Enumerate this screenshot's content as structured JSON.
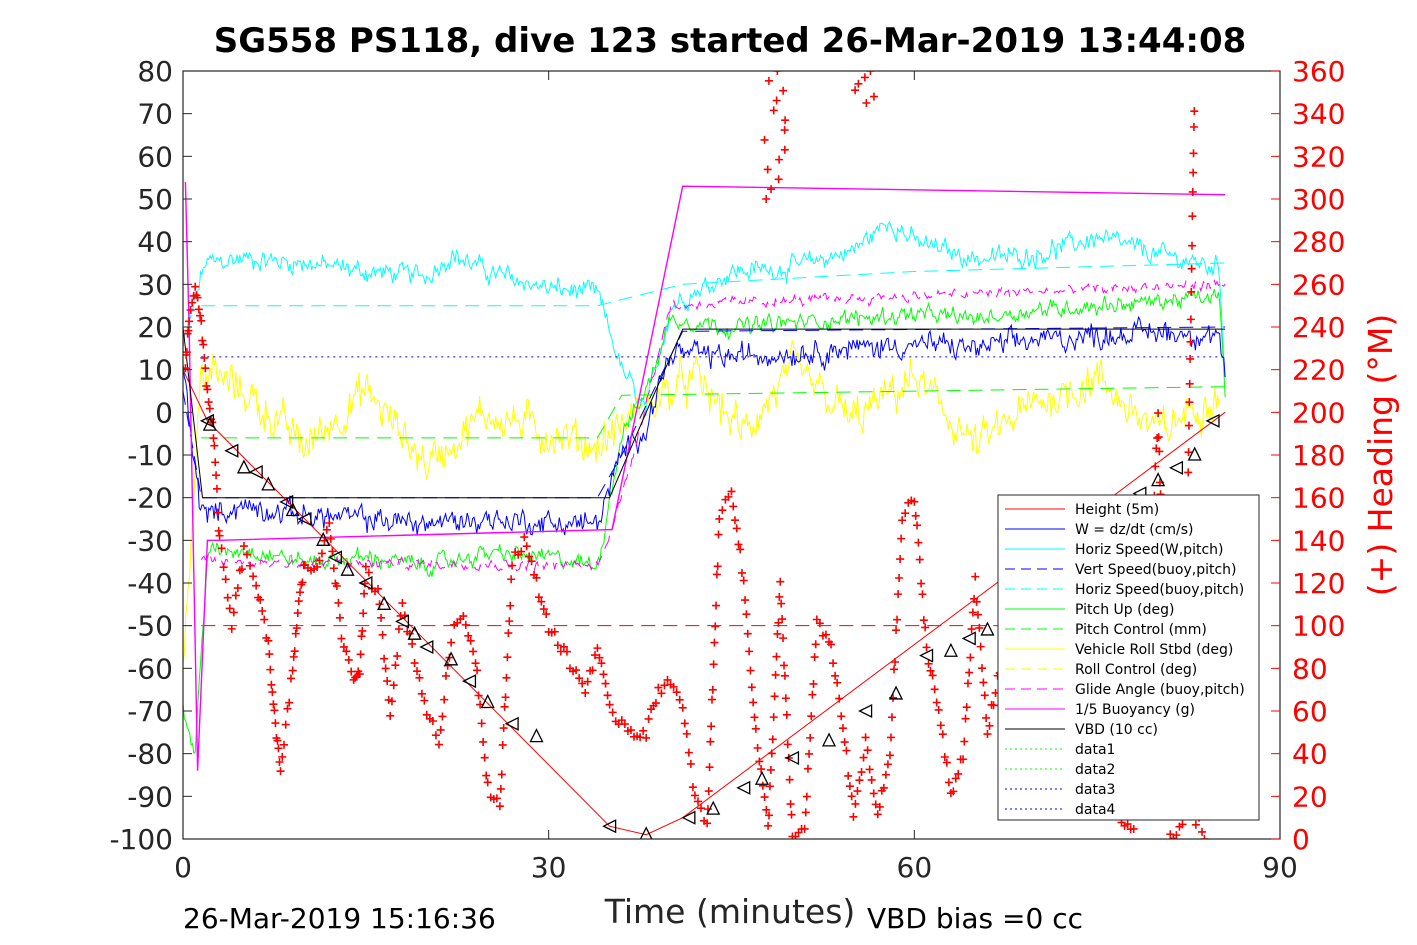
{
  "chart_data": {
    "type": "line",
    "title": "SG558 PS118, dive 123 started 26-Mar-2019 13:44:08",
    "xlabel": "Time (minutes)",
    "ylabel_right": "(+) Heading (°M)",
    "xlim": [
      0,
      90
    ],
    "ylim": [
      -100,
      80
    ],
    "ylim_right": [
      0,
      360
    ],
    "x_ticks": [
      "0",
      "30",
      "60",
      "90"
    ],
    "y_ticks": [
      "80",
      "70",
      "60",
      "50",
      "40",
      "30",
      "20",
      "10",
      "0",
      "-10",
      "-20",
      "-30",
      "-40",
      "-50",
      "-60",
      "-70",
      "-80",
      "-90",
      "-100"
    ],
    "y_ticks_right": [
      "360",
      "340",
      "320",
      "300",
      "280",
      "260",
      "240",
      "220",
      "200",
      "180",
      "160",
      "140",
      "120",
      "100",
      "80",
      "60",
      "40",
      "20",
      "0"
    ],
    "footer_left": "26-Mar-2019 15:16:36",
    "footer_right": "VBD bias =0 cc",
    "legend_position": "bottom-right",
    "colors": {
      "red": "#ff0000",
      "blue": "#0000ff",
      "cyan": "#00ffff",
      "green": "#00ff00",
      "yellow": "#ffff00",
      "magenta": "#ff00ff",
      "black": "#000000"
    },
    "series": [
      {
        "name": "Height (5m)",
        "color": "#ff0000",
        "style": "solid",
        "x": [
          0,
          2,
          35,
          38,
          41,
          85.5
        ],
        "y": [
          10,
          -2,
          -97,
          -99,
          -95,
          0
        ]
      },
      {
        "name": "W = dz/dt (cm/s)",
        "color": "#0000ff",
        "style": "solid",
        "x": [
          0,
          1.5,
          5,
          10,
          15,
          20,
          25,
          30,
          34,
          36,
          38,
          40,
          45,
          50,
          55,
          60,
          65,
          70,
          75,
          80,
          85,
          85.5
        ],
        "y": [
          10,
          -24,
          -22,
          -24,
          -25,
          -26,
          -25,
          -26,
          -26,
          -10,
          -3,
          14,
          13,
          14,
          15,
          16,
          15,
          17,
          18,
          19,
          18,
          8
        ],
        "noise": 3.5
      },
      {
        "name": "Horiz Speed(W,pitch)",
        "color": "#00ffff",
        "style": "solid",
        "x": [
          0,
          1.8,
          5,
          10,
          15,
          20,
          22,
          25,
          30,
          34,
          36,
          38,
          40,
          45,
          50,
          55,
          58,
          60,
          65,
          70,
          75,
          80,
          85,
          85.5
        ],
        "y": [
          15,
          35,
          36,
          35,
          33,
          32,
          37,
          33,
          29,
          28,
          10,
          0,
          25,
          33,
          34,
          38,
          45,
          40,
          36,
          37,
          41,
          37,
          34,
          10
        ],
        "noise": 3
      },
      {
        "name": "Vert Speed(buoy,pitch)",
        "color": "#0000ff",
        "style": "dashed",
        "x": [
          0,
          1.5,
          34,
          36,
          41,
          85.5
        ],
        "y": [
          5,
          -20,
          -20,
          -10,
          19,
          20
        ]
      },
      {
        "name": "Horiz Speed(buoy,pitch)",
        "color": "#00ffff",
        "style": "dashed",
        "x": [
          1.5,
          34,
          41,
          60,
          85.5
        ],
        "y": [
          25,
          25,
          30,
          33,
          35
        ]
      },
      {
        "name": "Pitch Up (deg)",
        "color": "#00ff00",
        "style": "solid",
        "x": [
          0,
          1,
          2,
          5,
          10,
          15,
          20,
          25,
          30,
          34,
          36,
          38,
          40,
          45,
          50,
          55,
          60,
          65,
          70,
          75,
          80,
          85,
          85.5
        ],
        "y": [
          -70,
          -80,
          -33,
          -32,
          -35,
          -34,
          -36,
          -33,
          -34,
          -36,
          -5,
          5,
          22,
          20,
          21,
          22,
          23,
          22,
          24,
          25,
          26,
          27,
          5
        ],
        "noise": 2.5
      },
      {
        "name": "Pitch Control (mm)",
        "color": "#00ff00",
        "style": "dashed",
        "x": [
          1.5,
          34,
          36,
          85.5
        ],
        "y": [
          -6,
          -6,
          4,
          6
        ]
      },
      {
        "name": "Vehicle Roll Stbd (deg)",
        "color": "#ffff00",
        "style": "solid",
        "x": [
          0,
          1.5,
          5,
          10,
          15,
          20,
          25,
          30,
          34,
          38,
          42,
          46,
          50,
          55,
          60,
          65,
          70,
          75,
          80,
          85
        ],
        "y": [
          -60,
          10,
          5,
          -8,
          5,
          -12,
          0,
          -5,
          -8,
          2,
          8,
          -5,
          10,
          -2,
          8,
          -8,
          2,
          8,
          -5,
          5
        ],
        "noise": 6
      },
      {
        "name": "Roll Control (deg)",
        "color": "#ffff00",
        "style": "dashed",
        "x": [],
        "y": []
      },
      {
        "name": "Glide Angle (buoy,pitch)",
        "color": "#ff00ff",
        "style": "dashed",
        "x": [
          1.5,
          34,
          36,
          40,
          85.5
        ],
        "y": [
          -35,
          -36,
          -20,
          25,
          30
        ],
        "noise": 1.5
      },
      {
        "name": "1/5 Buoyancy (g)",
        "color": "#ff00ff",
        "style": "solid",
        "x": [
          0.2,
          0.5,
          1.2,
          2,
          3,
          34.8,
          35.2,
          41,
          85.5
        ],
        "y": [
          54,
          20,
          -84,
          -30,
          -30,
          -27.5,
          -27.5,
          53,
          51
        ]
      },
      {
        "name": "VBD (10 cc)",
        "color": "#000000",
        "style": "solid",
        "x": [
          0,
          1.6,
          35,
          38,
          41,
          85.5
        ],
        "y": [
          20,
          -20,
          -20,
          0,
          19.5,
          19.5
        ]
      },
      {
        "name": "data1",
        "color": "#00ff00",
        "style": "dotted",
        "x": [],
        "y": []
      },
      {
        "name": "data2",
        "color": "#00ff00",
        "style": "dotted",
        "x": [],
        "y": []
      },
      {
        "name": "data3",
        "color": "#0000ff",
        "style": "dotted",
        "x": [
          1.5,
          85.5
        ],
        "y": [
          13,
          13
        ]
      },
      {
        "name": "data4",
        "color": "#0000ff",
        "style": "dotted",
        "x": [
          1.5,
          85.5
        ],
        "y": [
          -13.5,
          -13.5
        ]
      }
    ],
    "extra_lines": [
      {
        "color": "#ff0000",
        "style": "dashed",
        "x": [
          1.5,
          85.5
        ],
        "y": [
          -50,
          -50
        ]
      }
    ],
    "heading": {
      "name": "(+) Heading (°M)",
      "color": "#ff0000",
      "marker": "+",
      "axis": "right",
      "x": [
        0.2,
        0.5,
        1,
        1.5,
        2,
        2.5,
        3,
        4,
        5,
        6,
        7,
        7.5,
        8,
        9,
        9.5,
        10,
        11,
        12,
        13,
        14,
        14.5,
        15,
        16,
        17,
        18,
        19,
        20,
        21,
        22,
        23,
        24,
        25,
        26,
        27,
        28,
        29,
        30,
        31,
        32,
        33,
        34,
        35,
        36,
        37,
        38,
        39,
        40,
        41,
        42,
        43,
        44,
        45,
        46,
        47,
        48,
        49,
        50,
        51,
        52,
        53,
        54,
        55,
        56,
        57,
        58,
        59,
        60,
        61,
        62,
        63,
        64,
        65,
        66,
        67,
        68,
        69,
        70,
        71,
        72,
        73,
        74,
        75,
        76,
        77,
        78,
        79,
        80,
        81,
        82,
        83
      ],
      "y": [
        220,
        245,
        260,
        240,
        210,
        190,
        140,
        100,
        135,
        120,
        90,
        60,
        30,
        80,
        110,
        130,
        125,
        150,
        95,
        75,
        80,
        125,
        115,
        60,
        110,
        85,
        60,
        45,
        95,
        105,
        85,
        25,
        15,
        130,
        140,
        120,
        100,
        90,
        80,
        70,
        90,
        60,
        55,
        50,
        50,
        70,
        75,
        60,
        20,
        5,
        150,
        165,
        120,
        50,
        5,
        120,
        0,
        5,
        100,
        95,
        60,
        10,
        45,
        10,
        40,
        150,
        160,
        90,
        60,
        20,
        40,
        120,
        50,
        80,
        100,
        60,
        105,
        120,
        60,
        40,
        30,
        20,
        15,
        10,
        5,
        80,
        200,
        0,
        5,
        355
      ],
      "clusters": [
        {
          "x": 48.5,
          "y": [
            300,
            360
          ],
          "count": 14
        },
        {
          "x": 56,
          "y": [
            345,
            360
          ],
          "count": 6
        },
        {
          "x": 83,
          "y": [
            0,
            10
          ],
          "count": 4
        }
      ]
    },
    "vbd_markers": {
      "color": "#000000",
      "marker": "triangle",
      "x": [
        2,
        2.2,
        4,
        5,
        6,
        7,
        8.5,
        9,
        10,
        11.5,
        12.5,
        13.5,
        15,
        16.5,
        18,
        19,
        20,
        22,
        23.5,
        25,
        27,
        29,
        35,
        38,
        41.5,
        43.5,
        46,
        47.5,
        50,
        53,
        56,
        58.5,
        61,
        63,
        64.5,
        66,
        67.5,
        69,
        71,
        73,
        75,
        77,
        78.5,
        80,
        81.5,
        83,
        84.5
      ],
      "y": [
        -2,
        -3,
        -9,
        -13,
        -14,
        -17,
        -21,
        -23,
        -25,
        -30,
        -34,
        -37,
        -40,
        -45,
        -49,
        -52,
        -55,
        -58,
        -63,
        -68,
        -73,
        -76,
        -97,
        -99,
        -95,
        -93,
        -88,
        -86,
        -81,
        -77,
        -70,
        -66,
        -57,
        -56,
        -53,
        -51,
        -49,
        -47,
        -44,
        -40,
        -33,
        -26,
        -19,
        -16,
        -13,
        -10,
        -2
      ]
    }
  }
}
